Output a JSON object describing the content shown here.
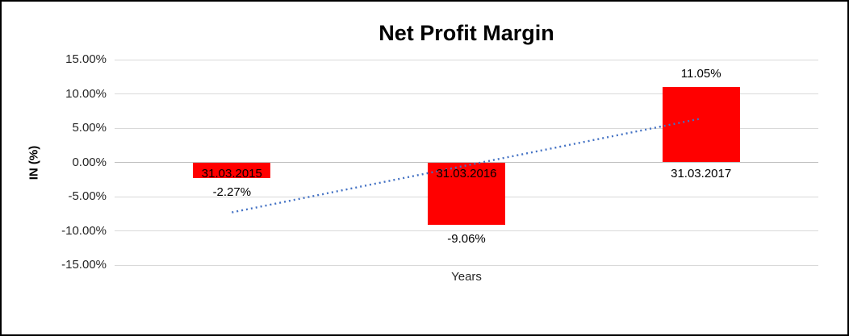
{
  "chart_data": {
    "type": "bar",
    "title": "Net Profit Margin",
    "xlabel": "Years",
    "ylabel": "IN (%)",
    "categories": [
      "31.03.2015",
      "31.03.2016",
      "31.03.2017"
    ],
    "values": [
      -2.27,
      -9.06,
      11.05
    ],
    "value_labels": [
      "-2.27%",
      "-9.06%",
      "11.05%"
    ],
    "ylim": [
      -15,
      15
    ],
    "ytick_step": 5,
    "ytick_labels": [
      "15.00%",
      "10.00%",
      "5.00%",
      "0.00%",
      "-5.00%",
      "-10.00%",
      "-15.00%"
    ],
    "grid": true,
    "legend": "none",
    "bar_color": "#ff0000",
    "gridline_color": "#d9d9d9",
    "trendline": {
      "style": "dotted",
      "color": "#4472c4",
      "start_value": -7.3,
      "end_value": 6.4
    }
  }
}
